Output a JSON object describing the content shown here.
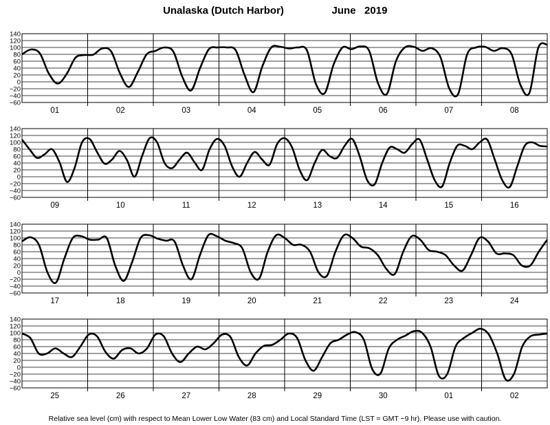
{
  "chart_data": {
    "type": "line",
    "title_location": "Unalaska (Dutch Harbor)",
    "title_period": "June   2019",
    "footnote": "Relative sea level (cm) with respect to Mean Lower Low Water (83 cm) and Local Standard Time (LST = GMT −9 hr). Please use with caution.",
    "y_ticks": [
      "140",
      "120",
      "100",
      "80",
      "60",
      "40",
      "20",
      "0",
      "−20",
      "−40",
      "−60"
    ],
    "ylim": [
      -60,
      140
    ],
    "grid": true,
    "panels": [
      {
        "days": [
          "01",
          "02",
          "03",
          "04",
          "05",
          "06",
          "07",
          "08"
        ],
        "values": [
          80,
          94,
          83,
          25,
          -5,
          22,
          70,
          78,
          79,
          97,
          89,
          25,
          -15,
          28,
          80,
          90,
          100,
          88,
          15,
          -25,
          40,
          95,
          100,
          100,
          92,
          20,
          -30,
          45,
          100,
          102,
          97,
          100,
          92,
          -5,
          -33,
          50,
          100,
          95,
          103,
          90,
          -5,
          -35,
          60,
          100,
          102,
          90,
          98,
          72,
          -20,
          -35,
          80,
          100,
          102,
          90,
          98,
          80,
          -10,
          -32,
          100,
          108
        ]
      },
      {
        "days": [
          "09",
          "10",
          "11",
          "12",
          "13",
          "14",
          "15",
          "16"
        ],
        "values": [
          108,
          80,
          55,
          65,
          80,
          42,
          -15,
          25,
          100,
          110,
          72,
          38,
          50,
          75,
          48,
          0,
          60,
          112,
          100,
          40,
          25,
          50,
          70,
          42,
          20,
          80,
          110,
          90,
          30,
          0,
          40,
          72,
          50,
          35,
          95,
          112,
          85,
          20,
          -10,
          40,
          78,
          60,
          55,
          90,
          110,
          60,
          -10,
          -22,
          40,
          85,
          80,
          70,
          95,
          108,
          50,
          -10,
          -28,
          40,
          90,
          90,
          80,
          100,
          108,
          50,
          -10,
          -30,
          30,
          90,
          100,
          90,
          88
        ]
      },
      {
        "days": [
          "17",
          "18",
          "19",
          "20",
          "21",
          "22",
          "23",
          "24"
        ],
        "values": [
          90,
          102,
          80,
          0,
          -30,
          40,
          100,
          105,
          95,
          95,
          100,
          20,
          -25,
          30,
          100,
          108,
          98,
          92,
          90,
          20,
          -20,
          50,
          108,
          105,
          92,
          85,
          70,
          0,
          -18,
          60,
          108,
          100,
          80,
          80,
          60,
          0,
          -10,
          60,
          108,
          100,
          75,
          70,
          50,
          10,
          -5,
          60,
          105,
          95,
          65,
          60,
          50,
          20,
          5,
          50,
          100,
          90,
          55,
          55,
          50,
          20,
          20,
          60,
          95
        ]
      },
      {
        "days": [
          "25",
          "26",
          "27",
          "28",
          "29",
          "30",
          "01",
          "02"
        ],
        "values": [
          98,
          85,
          40,
          40,
          55,
          40,
          30,
          60,
          95,
          90,
          45,
          25,
          50,
          55,
          40,
          55,
          95,
          90,
          40,
          15,
          40,
          60,
          52,
          70,
          95,
          88,
          30,
          5,
          40,
          62,
          65,
          80,
          98,
          85,
          20,
          -10,
          30,
          70,
          80,
          95,
          102,
          80,
          -5,
          -18,
          55,
          80,
          92,
          105,
          100,
          60,
          -25,
          -20,
          60,
          85,
          100,
          112,
          95,
          40,
          -35,
          -20,
          60,
          90,
          95,
          98
        ]
      }
    ]
  }
}
